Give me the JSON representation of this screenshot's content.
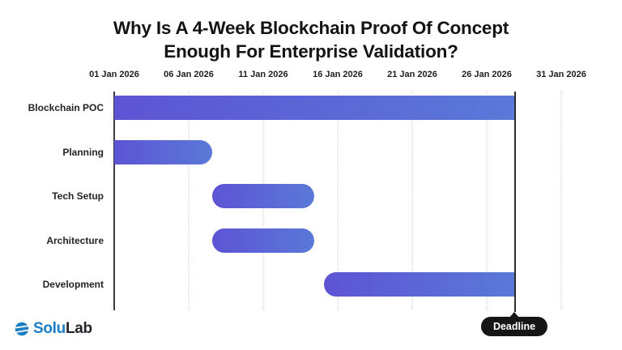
{
  "title": {
    "line1": "Why Is A 4-Week Blockchain Proof Of Concept",
    "line2": "Enough For Enterprise Validation?"
  },
  "chart_data": {
    "type": "bar",
    "subtype": "gantt",
    "title": "Why Is A 4-Week Blockchain Proof Of Concept Enough For Enterprise Validation?",
    "x_axis": {
      "unit": "date",
      "tick_labels": [
        "01 Jan 2026",
        "06 Jan 2026",
        "11 Jan 2026",
        "16 Jan 2026",
        "21 Jan 2026",
        "26 Jan 2026",
        "31 Jan 2026"
      ],
      "tick_days": [
        0,
        5,
        10,
        15,
        20,
        25,
        30
      ],
      "range_days": [
        0,
        34
      ],
      "grid": "dotted-vertical"
    },
    "tasks": [
      {
        "label": "Blockchain POC",
        "start_day": 0,
        "end_day": 26.9,
        "start_est": "01 Jan 2026",
        "end_est": "28 Jan 2026",
        "rounded_start": false,
        "rounded_end": false
      },
      {
        "label": "Planning",
        "start_day": 0,
        "end_day": 6.6,
        "start_est": "01 Jan 2026",
        "end_est": "07 Jan 2026",
        "rounded_start": false,
        "rounded_end": true
      },
      {
        "label": "Tech Setup",
        "start_day": 6.6,
        "end_day": 13.4,
        "start_est": "08 Jan 2026",
        "end_est": "14 Jan 2026",
        "rounded_start": true,
        "rounded_end": true
      },
      {
        "label": "Architecture",
        "start_day": 6.6,
        "end_day": 13.4,
        "start_est": "08 Jan 2026",
        "end_est": "14 Jan 2026",
        "rounded_start": true,
        "rounded_end": true
      },
      {
        "label": "Development",
        "start_day": 14.1,
        "end_day": 26.9,
        "start_est": "15 Jan 2026",
        "end_est": "28 Jan 2026",
        "rounded_start": true,
        "rounded_end": false
      }
    ],
    "deadline": {
      "day": 26.9,
      "label": "Deadline"
    },
    "legend": "none",
    "colors": {
      "bar_gradient_start": "#5d54d4",
      "bar_gradient_end": "#5a79d8",
      "axis_line": "#3c3c3c",
      "gridline": "#c9c9c9",
      "deadline_line": "#2d2d2d",
      "deadline_pill_bg": "#161616",
      "deadline_pill_text": "#ffffff"
    }
  },
  "branding": {
    "logo_icon": "solulab-sphere-icon",
    "logo_text_primary": "Solu",
    "logo_text_secondary": "Lab",
    "primary_color": "#1b7ec5",
    "secondary_color": "#25232a"
  }
}
